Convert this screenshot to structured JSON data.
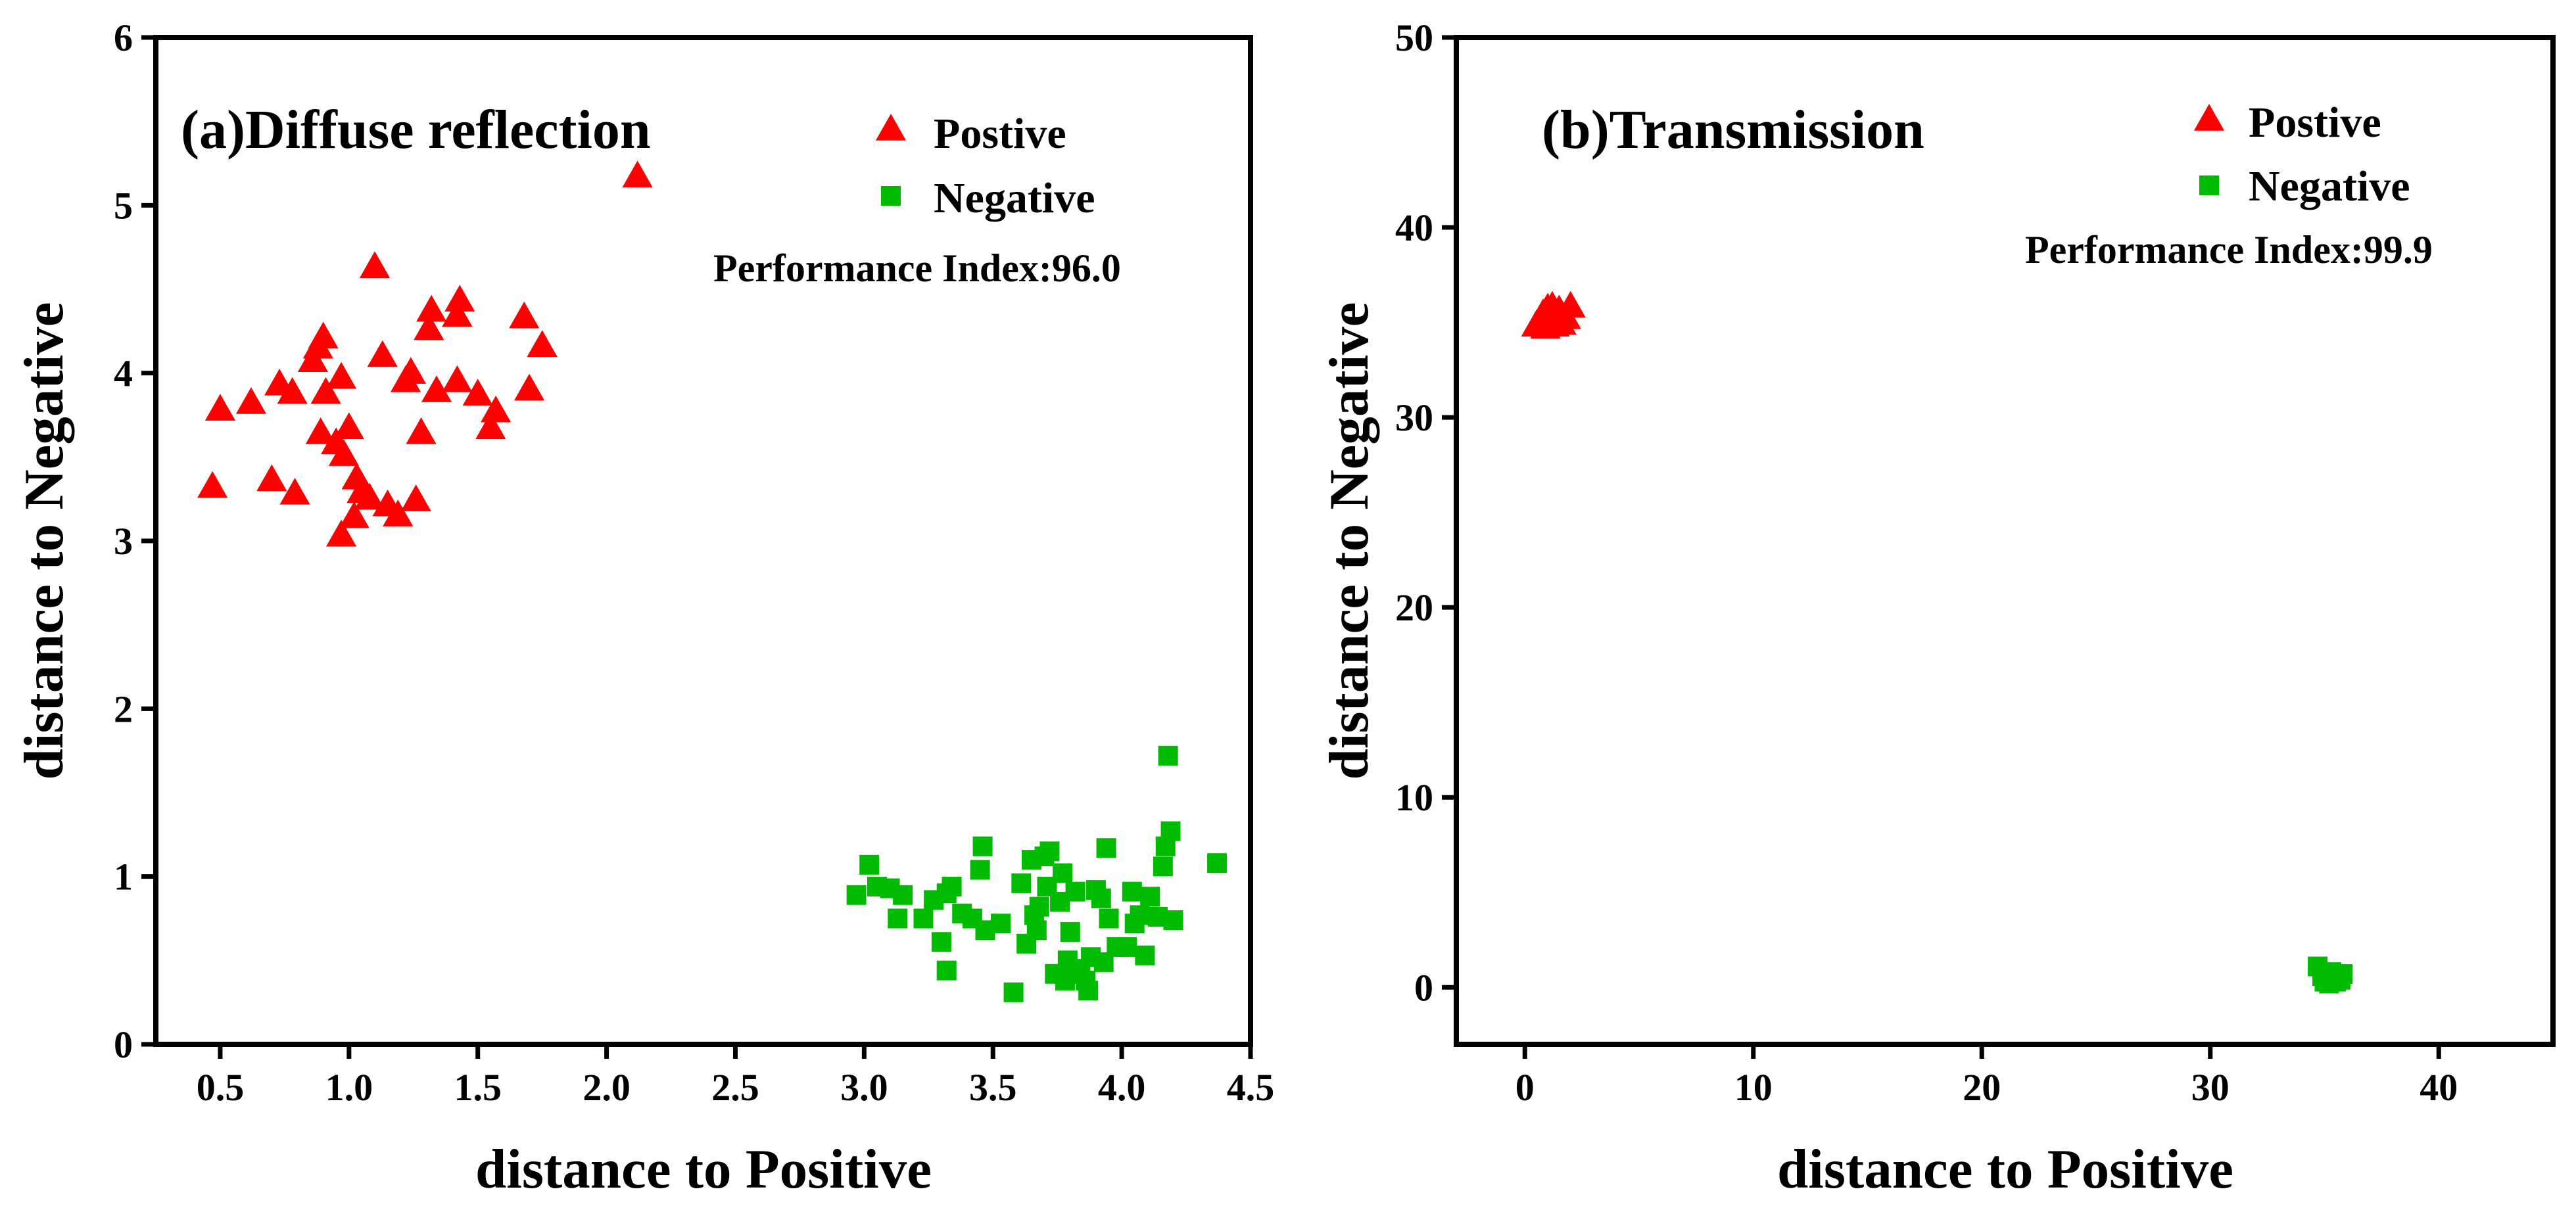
{
  "colors": {
    "positive": "#ff0000",
    "negative": "#00bb00",
    "axis": "#000000"
  },
  "chart_data": [
    {
      "type": "scatter",
      "title": "(a)Diffuse reflection",
      "annotation": "Performance Index:96.0",
      "xlabel": "distance to Positive",
      "ylabel": "distance to Negative",
      "xlim": [
        0.25,
        4.5
      ],
      "ylim": [
        0,
        6
      ],
      "xticks": [
        0.5,
        1.0,
        1.5,
        2.0,
        2.5,
        3.0,
        3.5,
        4.0,
        4.5
      ],
      "xtick_labels": [
        "0.5",
        "1.0",
        "1.5",
        "2.0",
        "2.5",
        "3.0",
        "3.5",
        "4.0",
        "4.5"
      ],
      "yticks": [
        0,
        1,
        2,
        3,
        4,
        5,
        6
      ],
      "ytick_labels": [
        "0",
        "1",
        "2",
        "3",
        "4",
        "5",
        "6"
      ],
      "legend": {
        "position": "top-right",
        "entries": [
          "Postive",
          "Negative"
        ]
      },
      "series": [
        {
          "name": "Postive",
          "marker": "triangle",
          "points": [
            [
              0.47,
              3.33
            ],
            [
              0.5,
              3.79
            ],
            [
              0.62,
              3.83
            ],
            [
              0.7,
              3.37
            ],
            [
              0.73,
              3.94
            ],
            [
              0.78,
              3.89
            ],
            [
              0.79,
              3.29
            ],
            [
              0.86,
              4.08
            ],
            [
              0.88,
              4.16
            ],
            [
              0.89,
              3.65
            ],
            [
              0.9,
              4.22
            ],
            [
              0.91,
              3.89
            ],
            [
              0.95,
              3.59
            ],
            [
              0.97,
              3.98
            ],
            [
              0.97,
              3.04
            ],
            [
              0.98,
              3.52
            ],
            [
              1.0,
              3.68
            ],
            [
              1.02,
              3.15
            ],
            [
              1.03,
              3.38
            ],
            [
              1.05,
              3.3
            ],
            [
              1.08,
              3.26
            ],
            [
              1.1,
              4.64
            ],
            [
              1.13,
              4.11
            ],
            [
              1.15,
              3.22
            ],
            [
              1.19,
              3.16
            ],
            [
              1.22,
              3.96
            ],
            [
              1.24,
              4.01
            ],
            [
              1.26,
              3.25
            ],
            [
              1.28,
              3.65
            ],
            [
              1.31,
              4.27
            ],
            [
              1.32,
              4.38
            ],
            [
              1.34,
              3.9
            ],
            [
              1.42,
              4.35
            ],
            [
              1.42,
              3.96
            ],
            [
              1.43,
              4.44
            ],
            [
              1.5,
              3.88
            ],
            [
              1.55,
              3.68
            ],
            [
              1.57,
              3.78
            ],
            [
              1.68,
              4.34
            ],
            [
              1.7,
              3.91
            ],
            [
              1.75,
              4.17
            ],
            [
              2.12,
              5.18
            ]
          ]
        },
        {
          "name": "Negative",
          "marker": "square",
          "points": [
            [
              2.97,
              0.89
            ],
            [
              3.02,
              1.07
            ],
            [
              3.05,
              0.94
            ],
            [
              3.1,
              0.93
            ],
            [
              3.13,
              0.75
            ],
            [
              3.15,
              0.89
            ],
            [
              3.23,
              0.75
            ],
            [
              3.27,
              0.86
            ],
            [
              3.3,
              0.61
            ],
            [
              3.32,
              0.44
            ],
            [
              3.32,
              0.9
            ],
            [
              3.34,
              0.94
            ],
            [
              3.38,
              0.78
            ],
            [
              3.42,
              0.75
            ],
            [
              3.45,
              1.04
            ],
            [
              3.46,
              1.18
            ],
            [
              3.47,
              0.68
            ],
            [
              3.53,
              0.72
            ],
            [
              3.58,
              0.31
            ],
            [
              3.61,
              0.96
            ],
            [
              3.63,
              0.6
            ],
            [
              3.65,
              1.1
            ],
            [
              3.66,
              0.77
            ],
            [
              3.67,
              0.68
            ],
            [
              3.68,
              0.82
            ],
            [
              3.7,
              1.12
            ],
            [
              3.71,
              0.94
            ],
            [
              3.72,
              1.15
            ],
            [
              3.74,
              0.42
            ],
            [
              3.76,
              0.85
            ],
            [
              3.77,
              1.02
            ],
            [
              3.78,
              0.38
            ],
            [
              3.79,
              0.5
            ],
            [
              3.8,
              0.67
            ],
            [
              3.81,
              0.42
            ],
            [
              3.82,
              0.91
            ],
            [
              3.84,
              0.45
            ],
            [
              3.86,
              0.38
            ],
            [
              3.87,
              0.32
            ],
            [
              3.88,
              0.52
            ],
            [
              3.9,
              0.92
            ],
            [
              3.92,
              0.87
            ],
            [
              3.93,
              0.49
            ],
            [
              3.94,
              1.17
            ],
            [
              3.95,
              0.75
            ],
            [
              3.98,
              0.58
            ],
            [
              4.02,
              0.58
            ],
            [
              4.04,
              0.91
            ],
            [
              4.05,
              0.72
            ],
            [
              4.07,
              0.77
            ],
            [
              4.09,
              0.53
            ],
            [
              4.11,
              0.88
            ],
            [
              4.14,
              0.76
            ],
            [
              4.16,
              1.06
            ],
            [
              4.17,
              1.18
            ],
            [
              4.18,
              1.72
            ],
            [
              4.19,
              1.27
            ],
            [
              4.2,
              0.74
            ],
            [
              4.37,
              1.08
            ]
          ]
        }
      ]
    },
    {
      "type": "scatter",
      "title": "(b)Transmission",
      "annotation": "Performance Index:99.9",
      "xlabel": "distance to Positive",
      "ylabel": "distance to Negative",
      "xlim": [
        -3,
        45
      ],
      "ylim": [
        -3,
        50
      ],
      "xticks": [
        0,
        10,
        20,
        30,
        40
      ],
      "xtick_labels": [
        "0",
        "10",
        "20",
        "30",
        "40"
      ],
      "yticks": [
        0,
        10,
        20,
        30,
        40,
        50
      ],
      "ytick_labels": [
        "0",
        "10",
        "20",
        "30",
        "40",
        "50"
      ],
      "legend": {
        "position": "top-right",
        "entries": [
          "Postive",
          "Negative"
        ]
      },
      "series": [
        {
          "name": "Postive",
          "marker": "triangle",
          "points": [
            [
              0.5,
              34.9
            ],
            [
              0.7,
              35.2
            ],
            [
              0.8,
              35.5
            ],
            [
              0.9,
              34.8
            ],
            [
              1.0,
              35.8
            ],
            [
              1.1,
              35.1
            ],
            [
              1.2,
              35.9
            ],
            [
              1.3,
              34.9
            ],
            [
              1.4,
              35.4
            ],
            [
              1.5,
              35.7
            ],
            [
              1.6,
              35.0
            ],
            [
              1.8,
              35.3
            ],
            [
              1.2,
              35.6
            ],
            [
              1.0,
              35.3
            ],
            [
              2.0,
              35.9
            ]
          ]
        },
        {
          "name": "Negative",
          "marker": "square",
          "points": [
            [
              34.7,
              1.1
            ],
            [
              34.9,
              0.6
            ],
            [
              35.0,
              0.3
            ],
            [
              35.1,
              0.5
            ],
            [
              35.2,
              0.2
            ],
            [
              35.3,
              0.7
            ],
            [
              35.4,
              0.4
            ],
            [
              35.5,
              0.3
            ],
            [
              35.6,
              0.6
            ],
            [
              35.7,
              0.4
            ],
            [
              35.8,
              0.7
            ],
            [
              35.3,
              0.8
            ]
          ]
        }
      ]
    }
  ]
}
